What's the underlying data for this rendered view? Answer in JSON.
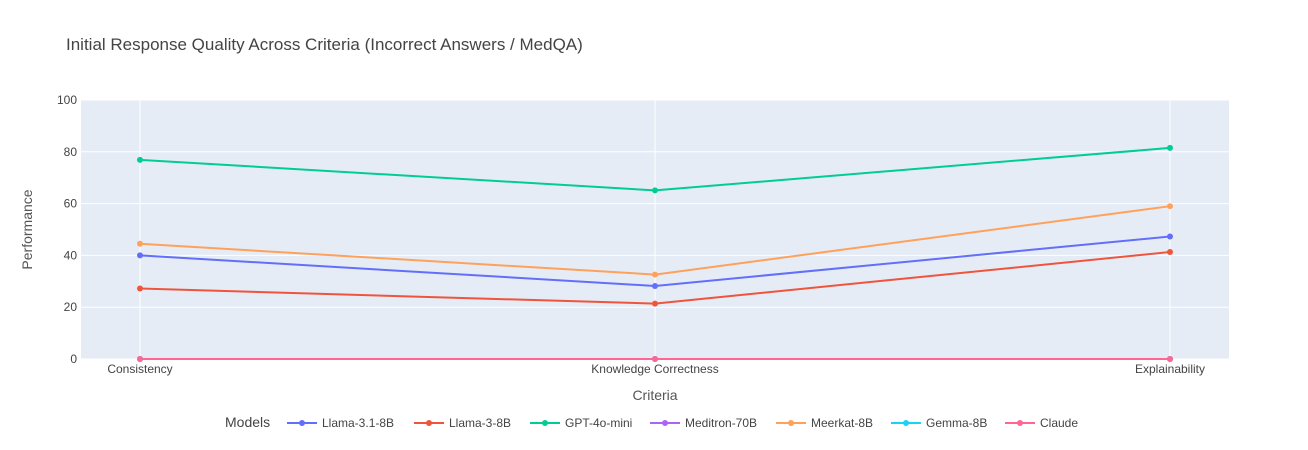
{
  "chart_data": {
    "type": "line",
    "title": "Initial Response Quality Across Criteria (Incorrect Answers / MedQA)",
    "xlabel": "Criteria",
    "ylabel": "Performance",
    "categories": [
      "Consistency",
      "Knowledge Correctness",
      "Explainability"
    ],
    "ylim": [
      0,
      100
    ],
    "yticks": [
      0,
      20,
      40,
      60,
      80,
      100
    ],
    "grid": true,
    "legend": {
      "title": "Models",
      "placement": "bottom"
    },
    "series": [
      {
        "name": "Llama-3.1-8B",
        "color": "#636efa",
        "values": [
          40.0,
          28.2,
          47.3
        ]
      },
      {
        "name": "Llama-3-8B",
        "color": "#ef553b",
        "values": [
          27.2,
          21.4,
          41.3
        ]
      },
      {
        "name": "GPT-4o-mini",
        "color": "#00cc96",
        "values": [
          76.9,
          65.1,
          81.5
        ]
      },
      {
        "name": "Meditron-70B",
        "color": "#ab63fa",
        "values": [
          0,
          0,
          0
        ]
      },
      {
        "name": "Meerkat-8B",
        "color": "#ffa15a",
        "values": [
          44.5,
          32.6,
          59.0
        ]
      },
      {
        "name": "Gemma-8B",
        "color": "#19d3f3",
        "values": [
          0,
          0,
          0
        ]
      },
      {
        "name": "Claude",
        "color": "#ff6692",
        "values": [
          0,
          0,
          0
        ]
      }
    ]
  }
}
